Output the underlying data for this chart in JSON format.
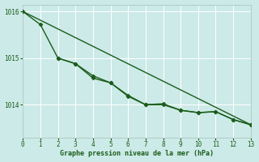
{
  "title": "Graphe pression niveau de la mer (hPa)",
  "background_color": "#cceae7",
  "grid_color": "#ffffff",
  "line_color": "#1a5c1a",
  "x_min": 0,
  "x_max": 13,
  "y_min": 1013.3,
  "y_max": 1016.15,
  "yticks": [
    1014,
    1015,
    1016
  ],
  "xticks": [
    0,
    1,
    2,
    3,
    4,
    5,
    6,
    7,
    8,
    9,
    10,
    11,
    12,
    13
  ],
  "series1_x": [
    0,
    1,
    2,
    3,
    4,
    5,
    6,
    7,
    8,
    9,
    10,
    11,
    12,
    13
  ],
  "series1_y": [
    1016.0,
    1015.72,
    1015.0,
    1014.88,
    1014.57,
    1014.47,
    1014.18,
    1014.0,
    1014.0,
    1013.88,
    1013.83,
    1013.85,
    1013.68,
    1013.57
  ],
  "series2_x": [
    2,
    3,
    4,
    5,
    6,
    7,
    8,
    9,
    10,
    11,
    12,
    13
  ],
  "series2_y": [
    1015.0,
    1014.88,
    1014.62,
    1014.47,
    1014.2,
    1014.0,
    1014.02,
    1013.88,
    1013.83,
    1013.85,
    1013.68,
    1013.57
  ],
  "series3_x": [
    0,
    13
  ],
  "series3_y": [
    1016.0,
    1013.57
  ],
  "xlabel_color": "#1a5c1a",
  "tick_label_color": "#1a5c1a",
  "spine_color": "#b0ccc8",
  "marker": "D",
  "markersize": 2.5,
  "linewidth": 1.0
}
